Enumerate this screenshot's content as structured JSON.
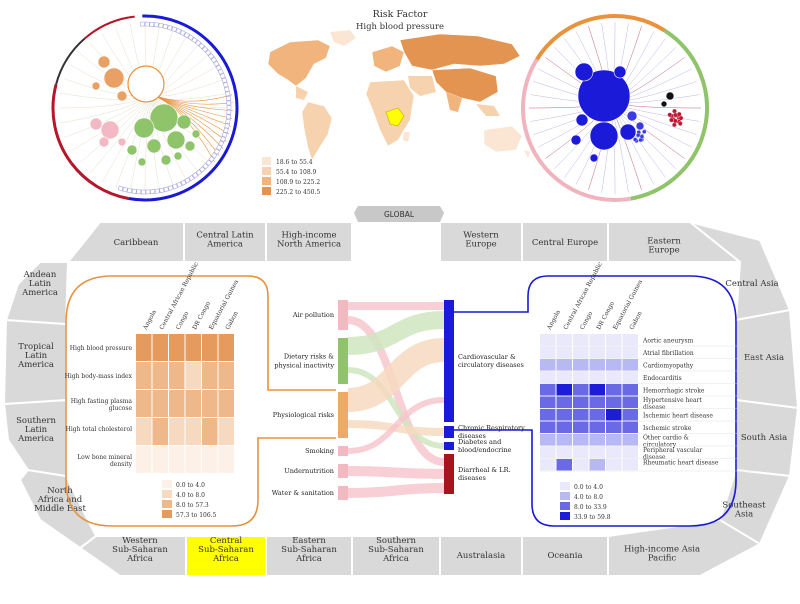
{
  "header": {
    "title": "Risk Factor",
    "subtitle": "High blood pressure"
  },
  "map_legend": {
    "items": [
      {
        "label": "18.6 to 55.4",
        "color": "#fbe6d3"
      },
      {
        "label": "55.4 to 108.9",
        "color": "#f7d2ae"
      },
      {
        "label": "108.9 to 225.2",
        "color": "#f0b47c"
      },
      {
        "label": "225.2 to 450.5",
        "color": "#e39450"
      }
    ]
  },
  "global_button": {
    "label": "GLOBAL"
  },
  "regions": {
    "top": [
      "Caribbean",
      "Central Latin America",
      "High-income North America",
      "",
      "Western Europe",
      "Central Europe",
      "Eastern Europe"
    ],
    "right": [
      "Central Asia",
      "East Asia",
      "South Asia",
      "Southeast Asia",
      "High-income Asia Pacific"
    ],
    "bottom": [
      "Oceania",
      "Australasia",
      "Southern Sub-Saharan Africa",
      "Eastern Sub-Saharan Africa",
      "Central Sub-Saharan Africa",
      "Western Sub-Saharan Africa"
    ],
    "left": [
      "North Africa and Middle East",
      "Southern Latin America",
      "Tropical Latin America",
      "Andean Latin America"
    ],
    "selected": "Central Sub-Saharan Africa",
    "selected_color": "#ffff00"
  },
  "left_heatmap": {
    "countries": [
      "Angola",
      "Central African Republic",
      "Congo",
      "DR Congo",
      "Equatorial Guinea",
      "Gabon"
    ],
    "rows": [
      {
        "label": "High blood pressure",
        "levels": [
          3,
          3,
          3,
          3,
          3,
          3
        ]
      },
      {
        "label": "High body-mass index",
        "levels": [
          2,
          2,
          2,
          1,
          2,
          2
        ]
      },
      {
        "label": "High fasting plasma glucose",
        "levels": [
          2,
          2,
          2,
          2,
          2,
          2
        ]
      },
      {
        "label": "High total cholesterol",
        "levels": [
          1,
          2,
          1,
          1,
          2,
          1
        ]
      },
      {
        "label": "Low bone mineral density",
        "levels": [
          0,
          0,
          0,
          0,
          0,
          0
        ]
      }
    ],
    "legend": [
      {
        "label": "0.0 to 4.0",
        "color": "#fdf0e6"
      },
      {
        "label": "4.0 to 8.0",
        "color": "#f7d9bf"
      },
      {
        "label": "8.0 to 57.3",
        "color": "#efb88a"
      },
      {
        "label": "57.3 to 106.5",
        "color": "#e59a5e"
      }
    ]
  },
  "sankey": {
    "risk_groups": [
      {
        "label": "Air pollution",
        "color": "#f4b8c0"
      },
      {
        "label": "Dietary risks & physical inactivity",
        "color": "#8fc46b"
      },
      {
        "label": "Physiological risks",
        "color": "#eda86a"
      },
      {
        "label": "Smoking",
        "color": "#f4b8c0"
      },
      {
        "label": "Undernutrition",
        "color": "#f4b8c0"
      },
      {
        "label": "Water & sanitation",
        "color": "#f4b8c0"
      }
    ],
    "disease_groups": [
      {
        "label": "Cardiovascular & circulatory diseases",
        "color": "#1a1ad8"
      },
      {
        "label": "Chronic Respiratory diseases",
        "color": "#1a1ad8"
      },
      {
        "label": "Diabetes and blood/endocrine",
        "color": "#1a1ad8"
      },
      {
        "label": "Diarrheal & LR. diseases",
        "color": "#a8141e"
      }
    ]
  },
  "right_heatmap": {
    "countries": [
      "Angola",
      "Central African Republic",
      "Congo",
      "DR Congo",
      "Equatorial Guinea",
      "Gabon"
    ],
    "rows": [
      {
        "label": "Aortic aneurysm",
        "levels": [
          0,
          0,
          0,
          0,
          0,
          0
        ]
      },
      {
        "label": "Atrial fibrillation",
        "levels": [
          0,
          0,
          0,
          0,
          0,
          0
        ]
      },
      {
        "label": "Cardiomyopathy",
        "levels": [
          1,
          1,
          1,
          1,
          1,
          1
        ]
      },
      {
        "label": "Endocarditis",
        "levels": [
          0,
          0,
          0,
          0,
          0,
          0
        ]
      },
      {
        "label": "Hemorrhagic stroke",
        "levels": [
          2,
          3,
          2,
          3,
          2,
          2
        ]
      },
      {
        "label": "Hypertensive heart disease",
        "levels": [
          2,
          2,
          2,
          2,
          2,
          2
        ]
      },
      {
        "label": "Ischemic heart disease",
        "levels": [
          2,
          2,
          2,
          2,
          3,
          2
        ]
      },
      {
        "label": "Ischemic stroke",
        "levels": [
          2,
          2,
          2,
          2,
          2,
          2
        ]
      },
      {
        "label": "Other cardio & circulatory",
        "levels": [
          1,
          1,
          1,
          1,
          1,
          1
        ]
      },
      {
        "label": "Peripheral vascular disease",
        "levels": [
          0,
          0,
          0,
          0,
          0,
          0
        ]
      },
      {
        "label": "Rheumatic heart disease",
        "levels": [
          0,
          2,
          0,
          1,
          0,
          0
        ]
      }
    ],
    "legend": [
      {
        "label": "0.0 to 4.0",
        "color": "#e9e9fb"
      },
      {
        "label": "4.0 to 8.0",
        "color": "#b8b8f2"
      },
      {
        "label": "8.0 to 33.9",
        "color": "#6a6ae6"
      },
      {
        "label": "33.9 to 59.8",
        "color": "#1d1dd9"
      }
    ]
  },
  "colors": {
    "orange": "#e8923d",
    "blue": "#1919d6",
    "green": "#8fc46b",
    "pink": "#f1b3bd",
    "red": "#b5162a",
    "region_fill": "#d9d9d9"
  }
}
